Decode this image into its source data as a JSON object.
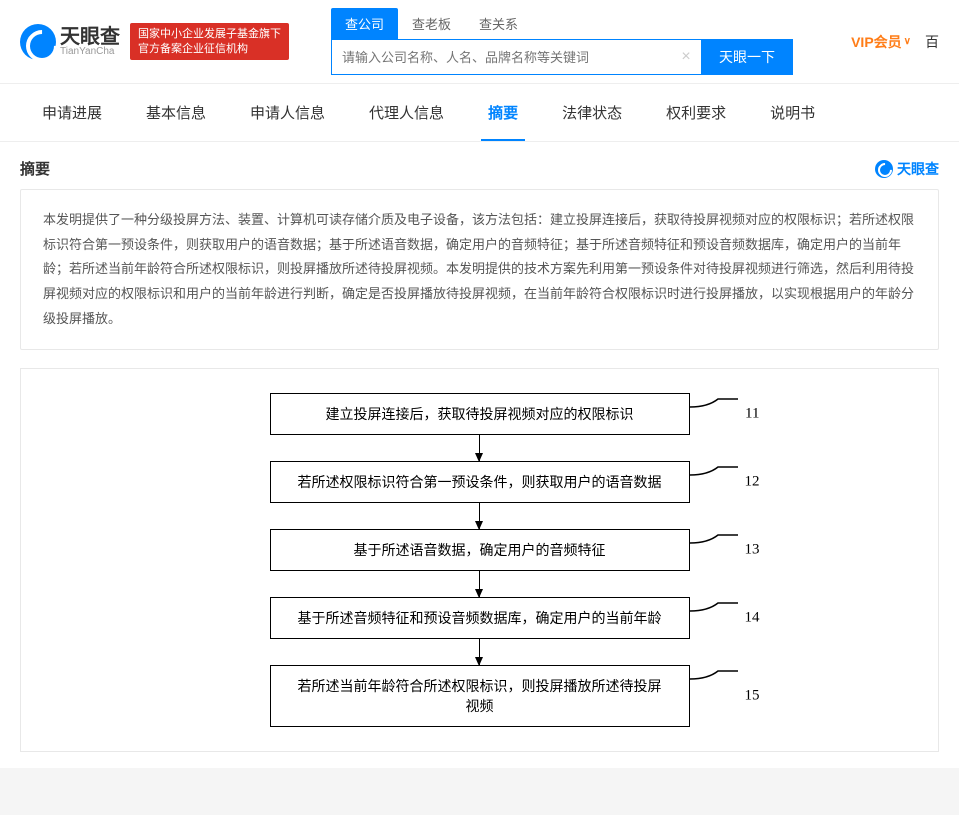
{
  "header": {
    "logo_cn": "天眼查",
    "logo_en": "TianYanCha",
    "badge_line1": "国家中小企业发展子基金旗下",
    "badge_line2": "官方备案企业征信机构",
    "search_tabs": [
      "查公司",
      "查老板",
      "查关系"
    ],
    "search_placeholder": "请输入公司名称、人名、品牌名称等关键词",
    "search_btn": "天眼一下",
    "vip_text": "VIP会员",
    "right_cut": "百"
  },
  "nav": {
    "tabs": [
      "申请进展",
      "基本信息",
      "申请人信息",
      "代理人信息",
      "摘要",
      "法律状态",
      "权利要求",
      "说明书"
    ],
    "active_index": 4
  },
  "section": {
    "title": "摘要",
    "brand": "天眼查"
  },
  "abstract_text": "本发明提供了一种分级投屏方法、装置、计算机可读存储介质及电子设备，该方法包括：建立投屏连接后，获取待投屏视频对应的权限标识；若所述权限标识符合第一预设条件，则获取用户的语音数据；基于所述语音数据，确定用户的音频特征；基于所述音频特征和预设音频数据库，确定用户的当前年龄；若所述当前年龄符合所述权限标识，则投屏播放所述待投屏视频。本发明提供的技术方案先利用第一预设条件对待投屏视频进行筛选，然后利用待投屏视频对应的权限标识和用户的当前年龄进行判断，确定是否投屏播放待投屏视频，在当前年龄符合权限标识时进行投屏播放，以实现根据用户的年龄分级投屏播放。",
  "flowchart": {
    "nodes": [
      {
        "num": "11",
        "text": "建立投屏连接后，获取待投屏视频对应的权限标识"
      },
      {
        "num": "12",
        "text": "若所述权限标识符合第一预设条件，则获取用户的语音数据"
      },
      {
        "num": "13",
        "text": "基于所述语音数据，确定用户的音频特征"
      },
      {
        "num": "14",
        "text": "基于所述音频特征和预设音频数据库，确定用户的当前年龄"
      },
      {
        "num": "15",
        "text": "若所述当前年龄符合所述权限标识，则投屏播放所述待投屏视频"
      }
    ]
  }
}
